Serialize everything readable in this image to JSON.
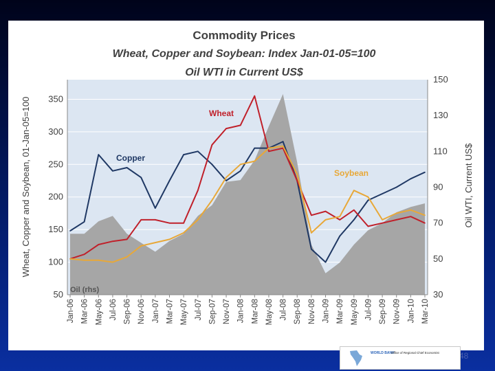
{
  "page_number": "48",
  "logo": {
    "org": "WORLD BANK",
    "office": "Office of Regional Chief Economist"
  },
  "colors": {
    "wheat": "#c0202a",
    "copper": "#1f3864",
    "soybean": "#e8a838",
    "oil": "#a6a6a6",
    "plot_bg": "#dce6f2"
  },
  "chart_data": {
    "type": "line",
    "title": "Commodity Prices",
    "subtitle_line1": "Wheat, Copper and Soybean: Index Jan-01-05=100",
    "subtitle_line2": "Oil WTI in Current US$",
    "ylabel_left": "Wheat, Copper and Soybean, 01-Jan-05=100",
    "ylabel_right": "Oil WTI, Current US$",
    "ylim_left": [
      50,
      380
    ],
    "ylim_right": [
      30,
      150
    ],
    "yticks_left": [
      "50",
      "100",
      "150",
      "200",
      "250",
      "300",
      "350"
    ],
    "yticks_right": [
      "30",
      "50",
      "70",
      "90",
      "110",
      "130",
      "150"
    ],
    "categories": [
      "Jan-06",
      "Mar-06",
      "May-06",
      "Jul-06",
      "Sep-06",
      "Nov-06",
      "Jan-07",
      "Mar-07",
      "May-07",
      "Jul-07",
      "Sep-07",
      "Nov-07",
      "Jan-08",
      "Mar-08",
      "May-08",
      "Jul-08",
      "Sep-08",
      "Nov-08",
      "Jan-09",
      "Mar-09",
      "May-09",
      "Jul-09",
      "Sep-09",
      "Nov-09",
      "Jan-10",
      "Mar-10"
    ],
    "series": [
      {
        "name": "Oil (rhs)",
        "axis": "right",
        "kind": "area",
        "values": [
          64,
          64,
          71,
          74,
          64,
          59,
          54,
          60,
          64,
          74,
          80,
          93,
          94,
          105,
          124,
          142,
          104,
          58,
          42,
          48,
          58,
          66,
          70,
          76,
          79,
          81
        ]
      },
      {
        "name": "Copper",
        "axis": "left",
        "kind": "line",
        "values": [
          148,
          162,
          265,
          240,
          245,
          230,
          183,
          225,
          265,
          270,
          250,
          225,
          240,
          275,
          275,
          285,
          225,
          120,
          100,
          140,
          165,
          195,
          205,
          215,
          228,
          238
        ]
      },
      {
        "name": "Wheat",
        "axis": "left",
        "kind": "line",
        "values": [
          105,
          112,
          127,
          132,
          135,
          165,
          165,
          160,
          160,
          210,
          280,
          305,
          310,
          355,
          270,
          275,
          225,
          172,
          178,
          165,
          180,
          155,
          160,
          165,
          170,
          160
        ]
      },
      {
        "name": "Soybean",
        "axis": "left",
        "kind": "line",
        "values": [
          105,
          103,
          103,
          100,
          108,
          125,
          130,
          135,
          145,
          165,
          195,
          230,
          250,
          255,
          275,
          278,
          235,
          145,
          165,
          170,
          210,
          200,
          165,
          175,
          180,
          172
        ]
      }
    ],
    "annotations": [
      "Copper",
      "Wheat",
      "Soybean",
      "Oil (rhs)"
    ]
  }
}
